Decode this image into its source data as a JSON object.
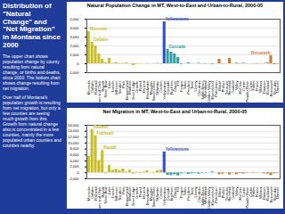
{
  "slide": {
    "title": "Distribution of \"Natural Change\" and \"Net Migration\" in Montana since 2000",
    "paragraphs": [
      "The upper chart shows population change by county resulting from natural change, or births and deaths, since 2000. The bottom chart shows change resulting from net migration.",
      "Over half of Montana's population growth is resulting from net migration, but only a few counties are seeing much growth from this. Growth from natural change also is concentrated in a few counties, mainly the more populated urban counties and counties nearby."
    ]
  },
  "chart_data": [
    {
      "type": "bar",
      "title": "Natural Population Change in MT, West-to-East and Urban-to-Rural, 2000-05",
      "categories": [
        "Missoula",
        "Gallatin",
        "Flathead",
        "Lewis and Clark",
        "Ravalli",
        "Silver Bow",
        "Lake",
        "Lincoln",
        "Jefferson",
        "Sanders",
        "Park",
        "Beaverhead",
        "Madison",
        "Deer Lodge",
        "Granite",
        "Powell",
        "Mineral",
        "Broadwater",
        "Meagher",
        "Sweet Grass",
        "Stillwater",
        "Carbon",
        "Yellowstone",
        "Cascade",
        "Big Horn",
        "Glacier",
        "Hill",
        "Fergus",
        "Teton",
        "Pondera",
        "Toole",
        "Liberty",
        "Chouteau",
        "Judith Basin",
        "Wheatland",
        "Golden Valley",
        "Musselshell",
        "Petroleum",
        "Blaine",
        "Phillips",
        "Treasure",
        "Rosebud",
        "Garfield",
        "Valley",
        "McCone",
        "Custer",
        "Powder River",
        "Carter",
        "Fallon",
        "Prairie",
        "Wibaux",
        "Dawson",
        "Richland",
        "Roosevelt",
        "Sheridan",
        "Daniels"
      ],
      "values": [
        3600,
        2400,
        2000,
        1100,
        500,
        100,
        600,
        50,
        150,
        -50,
        50,
        100,
        -30,
        -200,
        -40,
        30,
        0,
        40,
        -20,
        30,
        60,
        -40,
        4700,
        1600,
        1300,
        1100,
        700,
        -60,
        10,
        100,
        20,
        10,
        60,
        -20,
        -40,
        0,
        -60,
        0,
        500,
        -30,
        -10,
        600,
        -10,
        80,
        -20,
        80,
        -20,
        -10,
        -20,
        -40,
        -20,
        -20,
        100,
        900,
        -100,
        -60
      ],
      "colors": [
        "#c8be28",
        "#c8be28",
        "#c8be28",
        "#c8be28",
        "#c8be28",
        "#c8be28",
        "#c8be28",
        "#c8be28",
        "#c8be28",
        "#c8be28",
        "#c8be28",
        "#c8be28",
        "#c8be28",
        "#c8be28",
        "#c8be28",
        "#c8be28",
        "#c8be28",
        "#c8be28",
        "#c8be28",
        "#c8be28",
        "#c8be28",
        "#c8be28",
        "#3050c8",
        "#30a0a0",
        "#30a0a0",
        "#30a0a0",
        "#30a0a0",
        "#30a0a0",
        "#30a0a0",
        "#30a0a0",
        "#30a0a0",
        "#30a0a0",
        "#30a0a0",
        "#30a0a0",
        "#30a0a0",
        "#30a0a0",
        "#30a0a0",
        "#30a0a0",
        "#d07830",
        "#d07830",
        "#d07830",
        "#d07830",
        "#d07830",
        "#d07830",
        "#d07830",
        "#d07830",
        "#d07830",
        "#d07830",
        "#d07830",
        "#d07830",
        "#d07830",
        "#d07830",
        "#d07830",
        "#d07830",
        "#d07830",
        "#d07830"
      ],
      "annotations": [
        "Missoula",
        "Gallatin",
        "Yellowstone",
        "Cascade",
        "Roosevelt"
      ],
      "ylim": [
        -1000,
        5000
      ],
      "yticks": [
        {
          "value": -1000,
          "label": "-1,000"
        },
        0,
        {
          "value": 1000,
          "label": "1,000"
        },
        {
          "value": 2000,
          "label": "2,000"
        },
        {
          "value": 3000,
          "label": "3,000"
        },
        {
          "value": 4000,
          "label": "4,000"
        },
        {
          "value": 5000,
          "label": "5,000"
        }
      ],
      "grid": true
    },
    {
      "type": "bar",
      "title": "Net Migration in MT, West-to-East and Urban-to-Rural, 2000-05",
      "categories": [
        "Missoula",
        "Gallatin",
        "Flathead",
        "Lewis and Clark",
        "Ravalli",
        "Silver Bow",
        "Lake",
        "Lincoln",
        "Jefferson",
        "Sanders",
        "Park",
        "Beaverhead",
        "Madison",
        "Deer Lodge",
        "Granite",
        "Powell",
        "Mineral",
        "Broadwater",
        "Meagher",
        "Sweet Grass",
        "Stillwater",
        "Carbon",
        "Yellowstone",
        "Cascade",
        "Big Horn",
        "Glacier",
        "Hill",
        "Fergus",
        "Teton",
        "Pondera",
        "Toole",
        "Liberty",
        "Chouteau",
        "Judith Basin",
        "Wheatland",
        "Golden Valley",
        "Musselshell",
        "Petroleum",
        "Blaine",
        "Phillips",
        "Treasure",
        "Rosebud",
        "Garfield",
        "Valley",
        "McCone",
        "Custer",
        "Powder River",
        "Carter",
        "Fallon",
        "Prairie",
        "Wibaux",
        "Dawson",
        "Richland",
        "Roosevelt",
        "Sheridan",
        "Daniels"
      ],
      "values": [
        5500,
        14500,
        12500,
        4200,
        7500,
        -300,
        2500,
        900,
        1200,
        800,
        1300,
        300,
        900,
        -400,
        200,
        -200,
        300,
        700,
        50,
        200,
        700,
        900,
        7000,
        -800,
        -900,
        -600,
        -1000,
        -300,
        -100,
        -500,
        -300,
        -150,
        -400,
        -150,
        -100,
        30,
        300,
        -30,
        -600,
        -400,
        -60,
        -700,
        -100,
        -600,
        -200,
        -400,
        -150,
        -50,
        -150,
        -100,
        -60,
        -300,
        -400,
        -900,
        -300,
        -150
      ],
      "colors": [
        "#c8be28",
        "#c8be28",
        "#c8be28",
        "#c8be28",
        "#c8be28",
        "#c8be28",
        "#c8be28",
        "#c8be28",
        "#c8be28",
        "#c8be28",
        "#c8be28",
        "#c8be28",
        "#c8be28",
        "#c8be28",
        "#c8be28",
        "#c8be28",
        "#c8be28",
        "#c8be28",
        "#c8be28",
        "#c8be28",
        "#c8be28",
        "#c8be28",
        "#3050c8",
        "#30a0a0",
        "#30a0a0",
        "#30a0a0",
        "#30a0a0",
        "#30a0a0",
        "#30a0a0",
        "#30a0a0",
        "#30a0a0",
        "#30a0a0",
        "#30a0a0",
        "#30a0a0",
        "#30a0a0",
        "#30a0a0",
        "#30a0a0",
        "#30a0a0",
        "#d07830",
        "#d07830",
        "#d07830",
        "#d07830",
        "#d07830",
        "#d07830",
        "#d07830",
        "#d07830",
        "#d07830",
        "#d07830",
        "#d07830",
        "#d07830",
        "#d07830",
        "#d07830",
        "#d07830",
        "#d07830",
        "#d07830",
        "#d07830"
      ],
      "annotations": [
        "Gallatin",
        "Flathead",
        "Ravalli",
        "Yellowstone"
      ],
      "ylim": [
        -2000,
        16000
      ],
      "yticks": [
        {
          "value": -2000,
          "label": "-2,000"
        },
        0,
        {
          "value": 2000,
          "label": "2,000"
        },
        {
          "value": 4000,
          "label": "4,000"
        },
        {
          "value": 6000,
          "label": "6,000"
        },
        {
          "value": 8000,
          "label": "8,000"
        },
        {
          "value": 10000,
          "label": "10,000"
        },
        {
          "value": 12000,
          "label": "12,000"
        },
        {
          "value": 14000,
          "label": "14,000"
        },
        {
          "value": 16000,
          "label": "16,000"
        }
      ],
      "grid": true
    }
  ]
}
